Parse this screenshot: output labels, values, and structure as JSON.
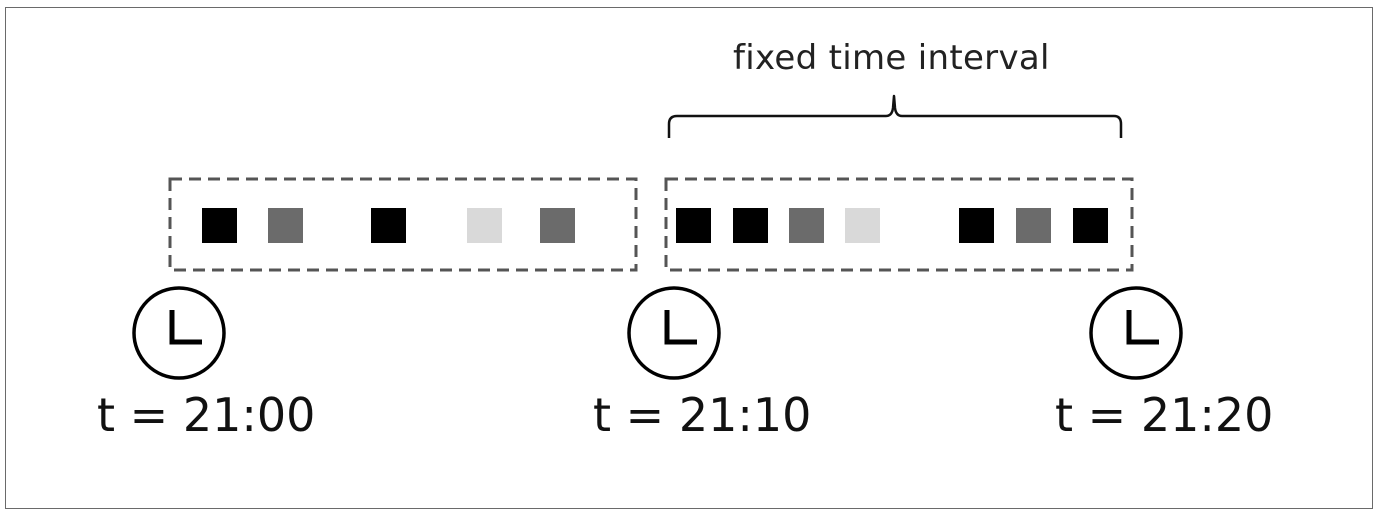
{
  "interval_label": "fixed time interval",
  "windows": [
    {
      "events": [
        {
          "shade": "black",
          "color": "#000000"
        },
        {
          "shade": "dark-gray",
          "color": "#6b6b6b"
        },
        {
          "shade": "black",
          "color": "#000000"
        },
        {
          "shade": "light-gray",
          "color": "#d9d9d9"
        },
        {
          "shade": "dark-gray",
          "color": "#6b6b6b"
        }
      ]
    },
    {
      "events": [
        {
          "shade": "black",
          "color": "#000000"
        },
        {
          "shade": "black",
          "color": "#000000"
        },
        {
          "shade": "dark-gray",
          "color": "#6b6b6b"
        },
        {
          "shade": "light-gray",
          "color": "#d9d9d9"
        },
        {
          "shade": "black",
          "color": "#000000"
        },
        {
          "shade": "dark-gray",
          "color": "#6b6b6b"
        },
        {
          "shade": "black",
          "color": "#000000"
        }
      ]
    }
  ],
  "clocks": [
    {
      "icon": "clock-icon",
      "label": "t = 21:00"
    },
    {
      "icon": "clock-icon",
      "label": "t = 21:10"
    },
    {
      "icon": "clock-icon",
      "label": "t = 21:20"
    }
  ]
}
